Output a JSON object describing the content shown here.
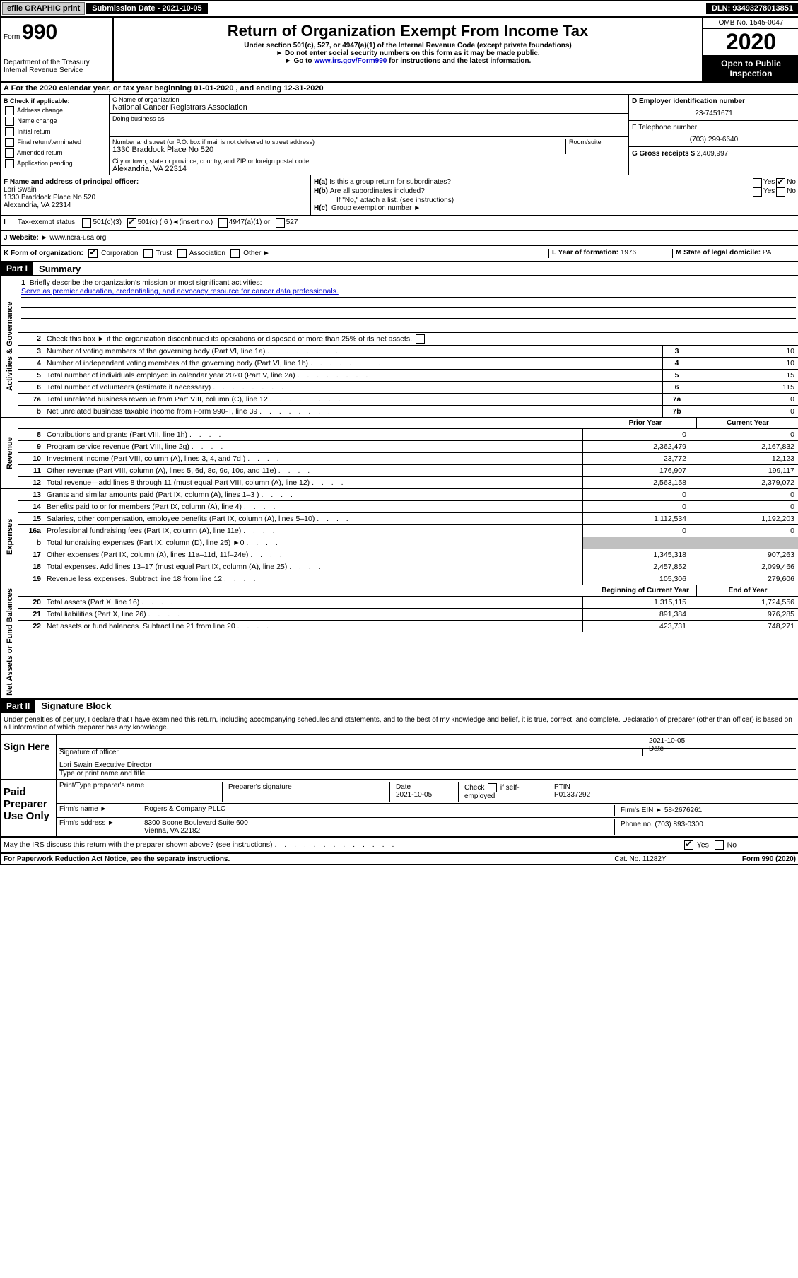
{
  "topbar": {
    "efile": "efile GRAPHIC print",
    "submission": "Submission Date - 2021-10-05",
    "dln": "DLN: 93493278013851"
  },
  "header": {
    "form_prefix": "Form",
    "form_number": "990",
    "dept": "Department of the Treasury\nInternal Revenue Service",
    "title": "Return of Organization Exempt From Income Tax",
    "subtitle": "Under section 501(c), 527, or 4947(a)(1) of the Internal Revenue Code (except private foundations)",
    "note1": "Do not enter social security numbers on this form as it may be made public.",
    "note2_prefix": "Go to ",
    "note2_link": "www.irs.gov/Form990",
    "note2_suffix": " for instructions and the latest information.",
    "omb": "OMB No. 1545-0047",
    "year": "2020",
    "inspection": "Open to Public Inspection"
  },
  "section_a": "For the 2020 calendar year, or tax year beginning 01-01-2020    , and ending 12-31-2020",
  "box_b": {
    "label": "B Check if applicable:",
    "opts": [
      "Address change",
      "Name change",
      "Initial return",
      "Final return/terminated",
      "Amended return",
      "Application pending"
    ]
  },
  "box_c": {
    "name_label": "C Name of organization",
    "name": "National Cancer Registrars Association",
    "dba_label": "Doing business as",
    "addr_label": "Number and street (or P.O. box if mail is not delivered to street address)",
    "room_label": "Room/suite",
    "addr": "1330 Braddock Place No 520",
    "city_label": "City or town, state or province, country, and ZIP or foreign postal code",
    "city": "Alexandria, VA  22314"
  },
  "box_d": {
    "label": "D Employer identification number",
    "value": "23-7451671"
  },
  "box_e": {
    "label": "E Telephone number",
    "value": "(703) 299-6640"
  },
  "box_g": {
    "label": "G Gross receipts $",
    "value": "2,409,997"
  },
  "box_f": {
    "label": "F  Name and address of principal officer:",
    "name": "Lori Swain",
    "addr": "1330 Braddock Place No 520\nAlexandria, VA  22314"
  },
  "box_h": {
    "ha": "Is this a group return for subordinates?",
    "hb": "Are all subordinates included?",
    "hb_note": "If \"No,\" attach a list. (see instructions)",
    "hc": "Group exemption number"
  },
  "box_i": {
    "label": "Tax-exempt status:",
    "opt1": "501(c)(3)",
    "opt2": "501(c) ( 6 )",
    "opt2_note": "(insert no.)",
    "opt3": "4947(a)(1) or",
    "opt4": "527"
  },
  "box_j": {
    "label": "J   Website:",
    "value": "www.ncra-usa.org"
  },
  "box_k": {
    "label": "K Form of organization:",
    "opts": [
      "Corporation",
      "Trust",
      "Association",
      "Other"
    ]
  },
  "box_l": {
    "label": "L Year of formation:",
    "value": "1976"
  },
  "box_m": {
    "label": "M State of legal domicile:",
    "value": "PA"
  },
  "part1": {
    "header": "Part I",
    "title": "Summary",
    "line1_label": "Briefly describe the organization's mission or most significant activities:",
    "mission": "Serve as premier education, credentialing, and advocacy resource for cancer data professionals.",
    "line2": "Check this box ►      if the organization discontinued its operations or disposed of more than 25% of its net assets.",
    "lines_gov": [
      {
        "num": "3",
        "text": "Number of voting members of the governing body (Part VI, line 1a)",
        "box": "3",
        "val": "10"
      },
      {
        "num": "4",
        "text": "Number of independent voting members of the governing body (Part VI, line 1b)",
        "box": "4",
        "val": "10"
      },
      {
        "num": "5",
        "text": "Total number of individuals employed in calendar year 2020 (Part V, line 2a)",
        "box": "5",
        "val": "15"
      },
      {
        "num": "6",
        "text": "Total number of volunteers (estimate if necessary)",
        "box": "6",
        "val": "115"
      },
      {
        "num": "7a",
        "text": "Total unrelated business revenue from Part VIII, column (C), line 12",
        "box": "7a",
        "val": "0"
      },
      {
        "num": "b",
        "text": "Net unrelated business taxable income from Form 990-T, line 39",
        "box": "7b",
        "val": "0"
      }
    ],
    "col_head_prior": "Prior Year",
    "col_head_current": "Current Year",
    "revenue_lines": [
      {
        "num": "8",
        "text": "Contributions and grants (Part VIII, line 1h)",
        "prior": "0",
        "current": "0"
      },
      {
        "num": "9",
        "text": "Program service revenue (Part VIII, line 2g)",
        "prior": "2,362,479",
        "current": "2,167,832"
      },
      {
        "num": "10",
        "text": "Investment income (Part VIII, column (A), lines 3, 4, and 7d )",
        "prior": "23,772",
        "current": "12,123"
      },
      {
        "num": "11",
        "text": "Other revenue (Part VIII, column (A), lines 5, 6d, 8c, 9c, 10c, and 11e)",
        "prior": "176,907",
        "current": "199,117"
      },
      {
        "num": "12",
        "text": "Total revenue—add lines 8 through 11 (must equal Part VIII, column (A), line 12)",
        "prior": "2,563,158",
        "current": "2,379,072"
      }
    ],
    "expense_lines": [
      {
        "num": "13",
        "text": "Grants and similar amounts paid (Part IX, column (A), lines 1–3 )",
        "prior": "0",
        "current": "0"
      },
      {
        "num": "14",
        "text": "Benefits paid to or for members (Part IX, column (A), line 4)",
        "prior": "0",
        "current": "0"
      },
      {
        "num": "15",
        "text": "Salaries, other compensation, employee benefits (Part IX, column (A), lines 5–10)",
        "prior": "1,112,534",
        "current": "1,192,203"
      },
      {
        "num": "16a",
        "text": "Professional fundraising fees (Part IX, column (A), line 11e)",
        "prior": "0",
        "current": "0"
      },
      {
        "num": "b",
        "text": "Total fundraising expenses (Part IX, column (D), line 25) ►0",
        "prior": "shaded",
        "current": "shaded"
      },
      {
        "num": "17",
        "text": "Other expenses (Part IX, column (A), lines 11a–11d, 11f–24e)",
        "prior": "1,345,318",
        "current": "907,263"
      },
      {
        "num": "18",
        "text": "Total expenses. Add lines 13–17 (must equal Part IX, column (A), line 25)",
        "prior": "2,457,852",
        "current": "2,099,466"
      },
      {
        "num": "19",
        "text": "Revenue less expenses. Subtract line 18 from line 12",
        "prior": "105,306",
        "current": "279,606"
      }
    ],
    "col_head_begin": "Beginning of Current Year",
    "col_head_end": "End of Year",
    "balance_lines": [
      {
        "num": "20",
        "text": "Total assets (Part X, line 16)",
        "prior": "1,315,115",
        "current": "1,724,556"
      },
      {
        "num": "21",
        "text": "Total liabilities (Part X, line 26)",
        "prior": "891,384",
        "current": "976,285"
      },
      {
        "num": "22",
        "text": "Net assets or fund balances. Subtract line 21 from line 20",
        "prior": "423,731",
        "current": "748,271"
      }
    ],
    "vert_gov": "Activities & Governance",
    "vert_rev": "Revenue",
    "vert_exp": "Expenses",
    "vert_net": "Net Assets or Fund Balances"
  },
  "part2": {
    "header": "Part II",
    "title": "Signature Block",
    "perjury": "Under penalties of perjury, I declare that I have examined this return, including accompanying schedules and statements, and to the best of my knowledge and belief, it is true, correct, and complete. Declaration of preparer (other than officer) is based on all information of which preparer has any knowledge."
  },
  "sign": {
    "label": "Sign Here",
    "sig_label": "Signature of officer",
    "date_label": "Date",
    "date": "2021-10-05",
    "name": "Lori Swain  Executive Director",
    "name_label": "Type or print name and title"
  },
  "preparer": {
    "label": "Paid Preparer Use Only",
    "name_label": "Print/Type preparer's name",
    "sig_label": "Preparer's signature",
    "date_label": "Date",
    "date": "2021-10-05",
    "check_label": "Check      if self-employed",
    "ptin_label": "PTIN",
    "ptin": "P01337292",
    "firm_label": "Firm's name    ►",
    "firm": "Rogers & Company PLLC",
    "ein_label": "Firm's EIN ►",
    "ein": "58-2676261",
    "addr_label": "Firm's address ►",
    "addr": "8300 Boone Boulevard Suite 600\nVienna, VA  22182",
    "phone_label": "Phone no.",
    "phone": "(703) 893-0300"
  },
  "discuss": "May the IRS discuss this return with the preparer shown above? (see instructions)",
  "footer": {
    "paperwork": "For Paperwork Reduction Act Notice, see the separate instructions.",
    "cat": "Cat. No. 11282Y",
    "form": "Form 990 (2020)"
  }
}
